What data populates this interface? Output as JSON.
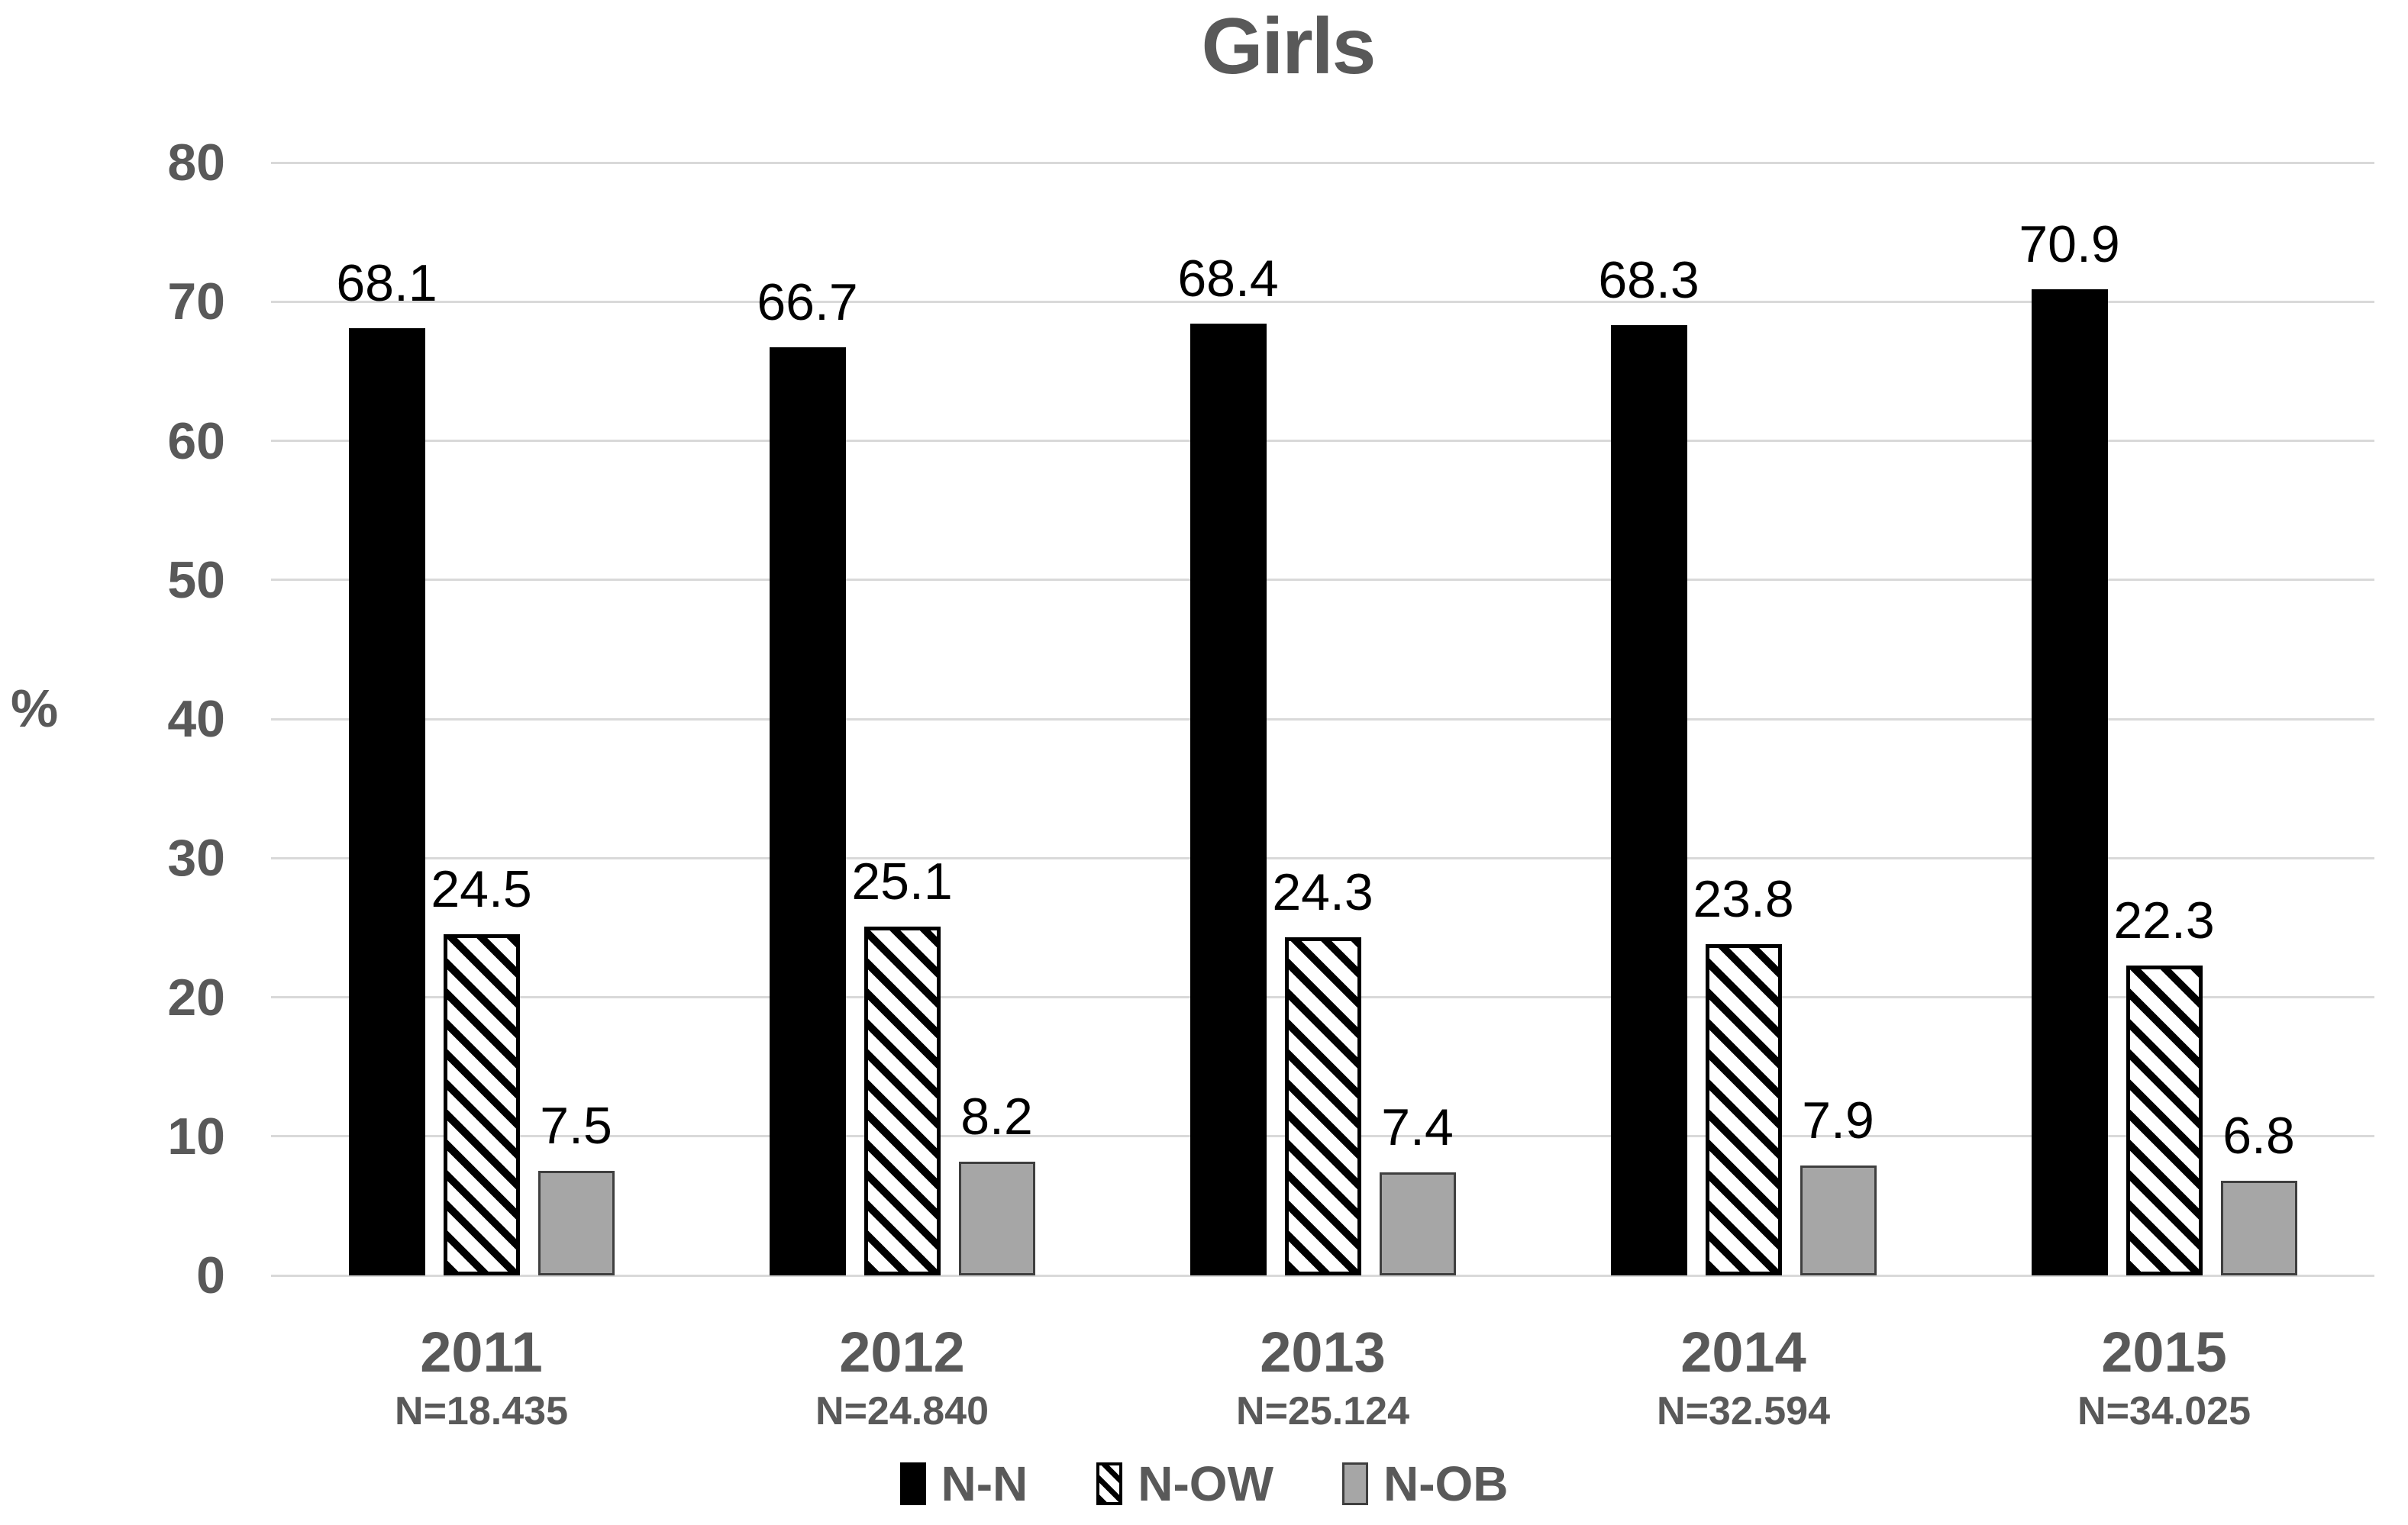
{
  "title": "Girls",
  "y_axis": {
    "title": "%",
    "ticks": [
      0,
      10,
      20,
      30,
      40,
      50,
      60,
      70,
      80
    ],
    "max": 80
  },
  "colors": {
    "text_gray": "#595959",
    "gridline": "#d9d9d9",
    "value_label": "#000000",
    "bar_black": "#000000",
    "bar_gray_fill": "#a6a6a6",
    "bar_gray_border": "#3f3f3f",
    "hatch_foreground": "#000000",
    "hatch_background": "#ffffff"
  },
  "legend": {
    "items": [
      {
        "label": "N-N",
        "style": "solid"
      },
      {
        "label": "N-OW",
        "style": "hatch"
      },
      {
        "label": "N-OB",
        "style": "gray"
      }
    ]
  },
  "chart_data": {
    "type": "bar",
    "title": "Girls",
    "xlabel": "",
    "ylabel": "%",
    "ylim": [
      0,
      80
    ],
    "y_tick_step": 10,
    "grid": true,
    "legend_position": "bottom",
    "categories": [
      "2011",
      "2012",
      "2013",
      "2014",
      "2015"
    ],
    "category_sublabels": [
      "N=18.435",
      "N=24.840",
      "N=25.124",
      "N=32.594",
      "N=34.025"
    ],
    "series": [
      {
        "name": "N-N",
        "style": "solid",
        "values": [
          68.1,
          66.7,
          68.4,
          68.3,
          70.9
        ]
      },
      {
        "name": "N-OW",
        "style": "hatch",
        "values": [
          24.5,
          25.1,
          24.3,
          23.8,
          22.3
        ]
      },
      {
        "name": "N-OB",
        "style": "gray",
        "values": [
          7.5,
          8.2,
          7.4,
          7.9,
          6.8
        ]
      }
    ]
  }
}
